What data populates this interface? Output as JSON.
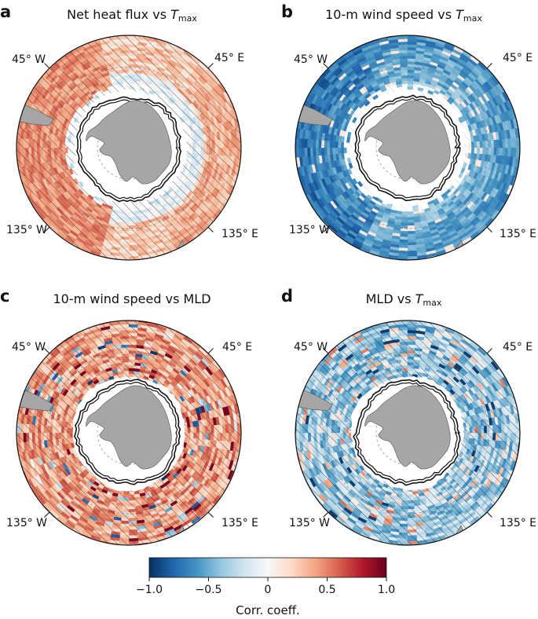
{
  "chart_data": [
    {
      "panel": "a",
      "type": "heatmap",
      "projection": "south-polar-stereographic",
      "title": {
        "main": "Net heat flux vs ",
        "var": "T",
        "sub": "max"
      },
      "pattern": "net-heat",
      "longitude_labels": [
        "45° W",
        "45° E",
        "135° W",
        "135° E"
      ],
      "hatching": "regions not significant"
    },
    {
      "panel": "b",
      "type": "heatmap",
      "projection": "south-polar-stereographic",
      "title": {
        "main": "10-m wind speed vs ",
        "var": "T",
        "sub": "max"
      },
      "pattern": "wind-tmax",
      "longitude_labels": [
        "45° W",
        "45° E",
        "135° W",
        "135° E"
      ],
      "hatching": "regions not significant"
    },
    {
      "panel": "c",
      "type": "heatmap",
      "projection": "south-polar-stereographic",
      "title": {
        "main": "10-m wind speed vs MLD",
        "var": "",
        "sub": ""
      },
      "pattern": "wind-mld",
      "longitude_labels": [
        "45° W",
        "45° E",
        "135° W",
        "135° E"
      ],
      "hatching": "regions not significant"
    },
    {
      "panel": "d",
      "type": "heatmap",
      "projection": "south-polar-stereographic",
      "title": {
        "main": "MLD vs ",
        "var": "T",
        "sub": "max"
      },
      "pattern": "mld-tmax",
      "longitude_labels": [
        "45° W",
        "45° E",
        "135° W",
        "135° E"
      ],
      "hatching": "regions not significant"
    }
  ],
  "colorbar": {
    "label": "Corr. coeff.",
    "range": [
      -1.0,
      1.0
    ],
    "ticks": [
      -1.0,
      -0.5,
      0,
      0.5,
      1.0
    ],
    "tick_labels": [
      "−1.0",
      "−0.5",
      "0",
      "0.5",
      "1.0"
    ],
    "colormap": [
      "#053061",
      "#2166ac",
      "#4393c3",
      "#92c5de",
      "#d1e5f0",
      "#f7f7f7",
      "#fddbc7",
      "#f4a582",
      "#d6604d",
      "#b2182b",
      "#67001f"
    ]
  },
  "colors": {
    "land": "#a6a6a6",
    "ice_edge": "#111111"
  }
}
